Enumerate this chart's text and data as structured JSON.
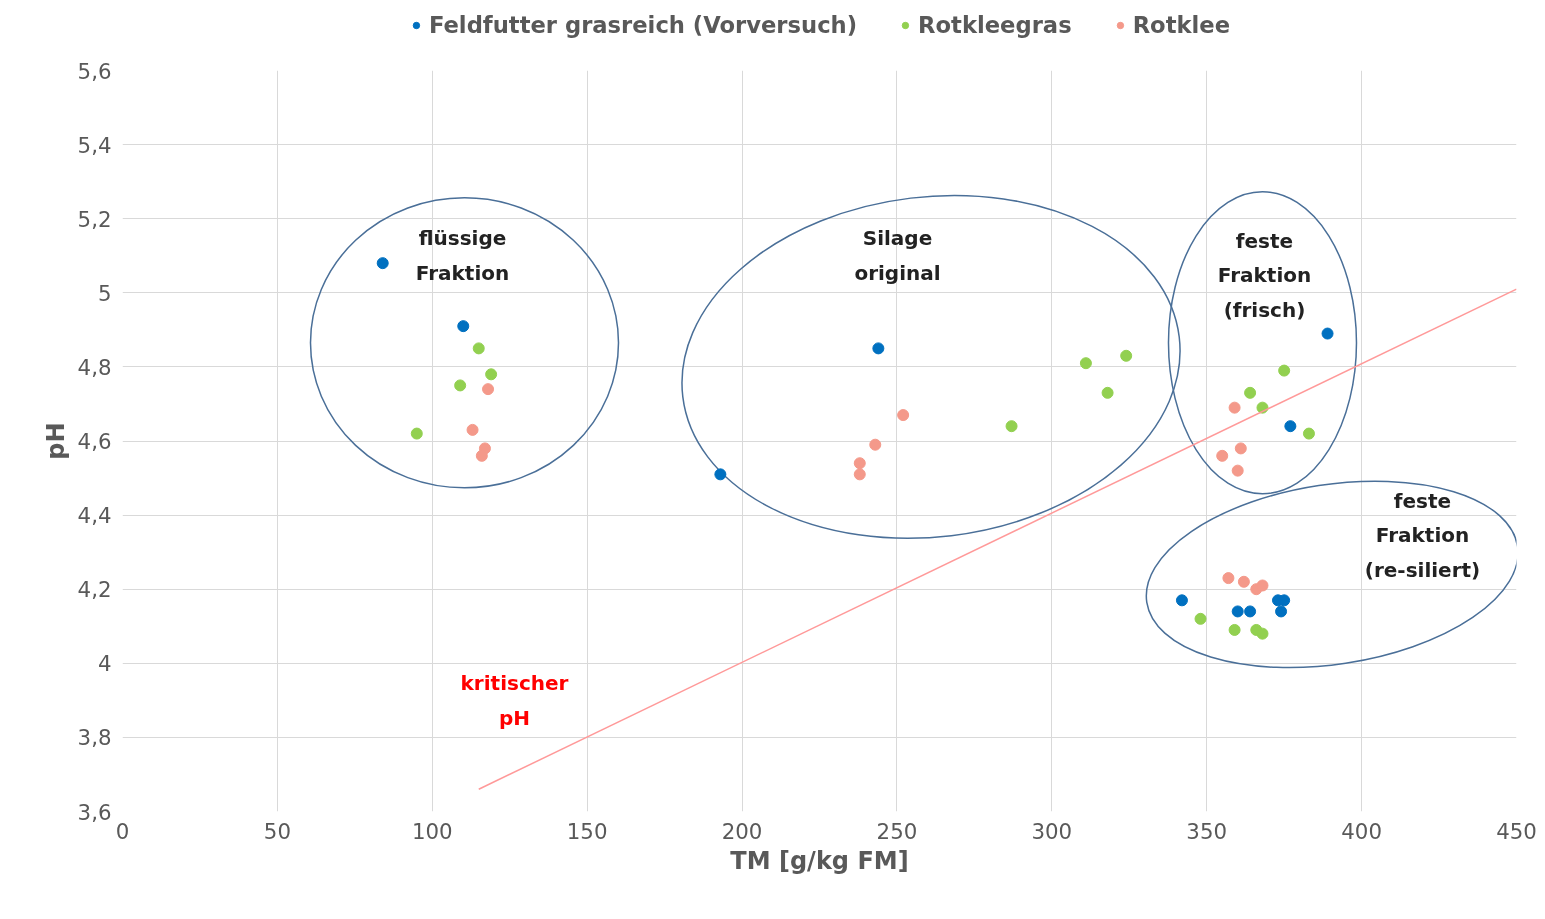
{
  "chart_data": {
    "type": "scatter",
    "xlabel": "TM [g/kg FM]",
    "ylabel": "pH",
    "xlim": [
      0,
      450
    ],
    "ylim": [
      3.6,
      5.6
    ],
    "xticks": [
      0,
      50,
      100,
      150,
      200,
      250,
      300,
      350,
      400,
      450
    ],
    "yticks": [
      {
        "value": 3.6,
        "label": "3,6"
      },
      {
        "value": 3.8,
        "label": "3,8"
      },
      4,
      {
        "value": 4.2,
        "label": "4,2"
      },
      {
        "value": 4.4,
        "label": "4,4"
      },
      {
        "value": 4.6,
        "label": "4,6"
      },
      {
        "value": 4.8,
        "label": "4,8"
      },
      5,
      {
        "value": 5.2,
        "label": "5,2"
      },
      {
        "value": 5.4,
        "label": "5,4"
      },
      {
        "value": 5.6,
        "label": "5,6"
      }
    ],
    "grid": true,
    "legend": "top",
    "marker": "circle",
    "series": [
      {
        "name": "Feldfutter grasreich (Vorversuch)",
        "color": "#0070c0",
        "x": [
          84,
          110,
          244,
          193,
          389,
          377,
          342,
          360,
          364,
          373,
          375,
          374
        ],
        "values": [
          5.08,
          4.91,
          4.85,
          4.51,
          4.89,
          4.64,
          4.17,
          4.14,
          4.14,
          4.17,
          4.17,
          4.14
        ]
      },
      {
        "name": "Rotkleegras",
        "color": "#92d050",
        "x": [
          115,
          119,
          109,
          95,
          287,
          311,
          324,
          318,
          375,
          364,
          368,
          383,
          348,
          359,
          366,
          368
        ],
        "values": [
          4.85,
          4.78,
          4.75,
          4.62,
          4.64,
          4.81,
          4.83,
          4.73,
          4.79,
          4.73,
          4.69,
          4.62,
          4.12,
          4.09,
          4.09,
          4.08
        ]
      },
      {
        "name": "Rotklee",
        "color": "#f4998a",
        "x": [
          118,
          113,
          117,
          116,
          238,
          238,
          243,
          252,
          359,
          355,
          361,
          360,
          357,
          362,
          366,
          368
        ],
        "values": [
          4.74,
          4.63,
          4.58,
          4.56,
          4.54,
          4.51,
          4.59,
          4.67,
          4.69,
          4.56,
          4.58,
          4.52,
          4.23,
          4.22,
          4.2,
          4.21
        ]
      },
      {
        "type": "line",
        "marker": "none",
        "color": "#ff9999",
        "x": [
          115,
          450
        ],
        "values": [
          3.66,
          5.01
        ]
      }
    ],
    "annotations": [
      "flüssige\nFraktion",
      "Silage\noriginal",
      "feste\nFraktion\n(frisch)",
      "feste\nFraktion\n(re-siliert)",
      "kritischer\npH"
    ]
  }
}
